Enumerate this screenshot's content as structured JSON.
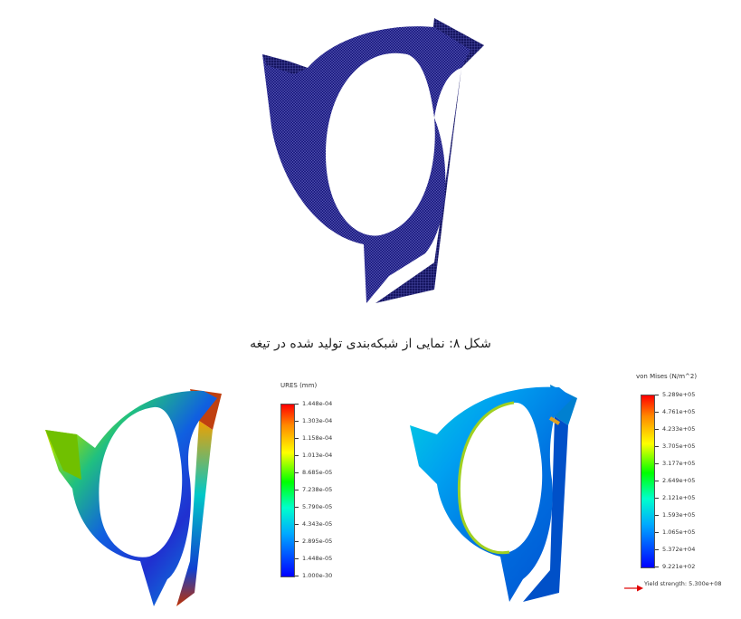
{
  "figure_caption": "شکل ۸: نمایی از شبکه‌بندی تولید شده در تیغه",
  "displacement_plot": {
    "legend_title": "URES (mm)",
    "ticks": [
      "1.448e-04",
      "1.303e-04",
      "1.158e-04",
      "1.013e-04",
      "8.685e-05",
      "7.238e-05",
      "5.790e-05",
      "4.343e-05",
      "2.895e-05",
      "1.448e-05",
      "1.000e-30"
    ]
  },
  "stress_plot": {
    "legend_title": "von Mises (N/m^2)",
    "ticks": [
      "5.289e+05",
      "4.761e+05",
      "4.233e+05",
      "3.705e+05",
      "3.177e+05",
      "2.649e+05",
      "2.121e+05",
      "1.593e+05",
      "1.065e+05",
      "5.372e+04",
      "9.221e+02"
    ],
    "yield_label": "Yield strength: 5.300e+08"
  },
  "colors": {
    "mesh_blue": "#1a1a7a",
    "jet": [
      "#ff0000",
      "#ff8800",
      "#ffff00",
      "#00ff00",
      "#00ffff",
      "#0000ff"
    ]
  }
}
